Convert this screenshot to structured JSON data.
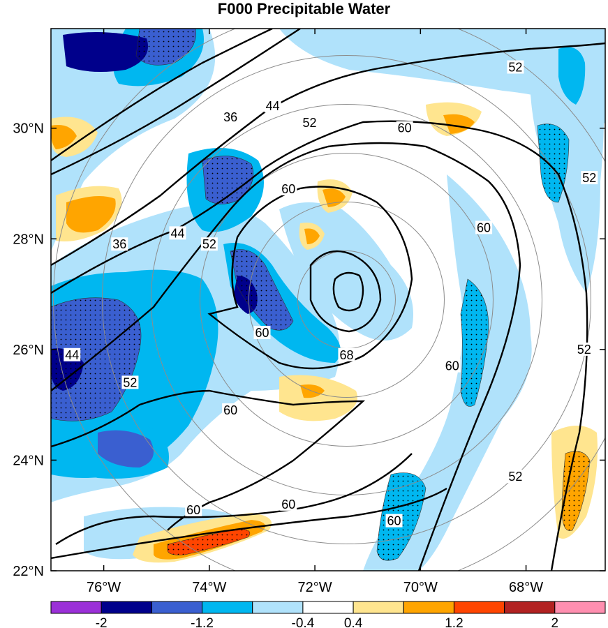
{
  "chart_data": {
    "type": "heatmap",
    "title": "F000 Precipitable Water",
    "map": {
      "projection": "polar stereographic (regional)",
      "lon_range": [
        -77,
        -66.5
      ],
      "lat_range": [
        22,
        31.8
      ],
      "x_ticks": [
        {
          "value": -76,
          "label": "76°W"
        },
        {
          "value": -74,
          "label": "74°W"
        },
        {
          "value": -72,
          "label": "72°W"
        },
        {
          "value": -70,
          "label": "70°W"
        },
        {
          "value": -68,
          "label": "68°W"
        }
      ],
      "y_ticks": [
        {
          "value": 22,
          "label": "22°N"
        },
        {
          "value": 24,
          "label": "24°N"
        },
        {
          "value": 26,
          "label": "26°N"
        },
        {
          "value": 28,
          "label": "28°N"
        },
        {
          "value": 30,
          "label": "30°N"
        }
      ]
    },
    "colorbar": {
      "orientation": "horizontal",
      "placement": "bottom",
      "levels": [
        -2.4,
        -2,
        -1.6,
        -1.2,
        -0.8,
        -0.4,
        0.4,
        0.8,
        1.2,
        1.6,
        2,
        2.4
      ],
      "colors": [
        "#9b30d8",
        "#00008b",
        "#3a5fd0",
        "#00b7f0",
        "#b0e2fb",
        "#ffffff",
        "#ffe58f",
        "#ffa500",
        "#ff4500",
        "#b22222",
        "#ff8fb0"
      ],
      "labels": [
        {
          "value": -2,
          "label": "-2"
        },
        {
          "value": -1.2,
          "label": "-1.2"
        },
        {
          "value": -0.4,
          "label": "-0.4"
        },
        {
          "value": 0.4,
          "label": "0.4"
        },
        {
          "value": 1.2,
          "label": "1.2"
        },
        {
          "value": 2,
          "label": "2"
        }
      ]
    },
    "contours": {
      "field": "Precipitable Water",
      "color": "#000000",
      "levels_labeled": [
        36,
        44,
        52,
        60,
        68
      ],
      "center": {
        "lon": -71.4,
        "lat": 26.9
      },
      "labels": [
        {
          "text": "36",
          "lon": -73.6,
          "lat": 30.2
        },
        {
          "text": "44",
          "lon": -72.8,
          "lat": 30.4
        },
        {
          "text": "52",
          "lon": -72.1,
          "lat": 30.1
        },
        {
          "text": "52",
          "lon": -68.2,
          "lat": 31.1
        },
        {
          "text": "60",
          "lon": -70.3,
          "lat": 30.0
        },
        {
          "text": "60",
          "lon": -72.5,
          "lat": 28.9
        },
        {
          "text": "36",
          "lon": -75.7,
          "lat": 27.9
        },
        {
          "text": "44",
          "lon": -74.6,
          "lat": 28.1
        },
        {
          "text": "52",
          "lon": -74.0,
          "lat": 27.9
        },
        {
          "text": "60",
          "lon": -68.8,
          "lat": 28.2
        },
        {
          "text": "52",
          "lon": -66.8,
          "lat": 29.1
        },
        {
          "text": "60",
          "lon": -73.0,
          "lat": 26.3
        },
        {
          "text": "68",
          "lon": -71.4,
          "lat": 25.9
        },
        {
          "text": "44",
          "lon": -76.6,
          "lat": 25.9
        },
        {
          "text": "52",
          "lon": -75.5,
          "lat": 25.4
        },
        {
          "text": "60",
          "lon": -73.6,
          "lat": 24.9
        },
        {
          "text": "60",
          "lon": -69.4,
          "lat": 25.7
        },
        {
          "text": "52",
          "lon": -66.9,
          "lat": 26.0
        },
        {
          "text": "52",
          "lon": -68.2,
          "lat": 23.7
        },
        {
          "text": "60",
          "lon": -74.3,
          "lat": 23.1
        },
        {
          "text": "60",
          "lon": -72.5,
          "lat": 23.2
        },
        {
          "text": "60",
          "lon": -70.5,
          "lat": 22.9
        }
      ]
    },
    "range_rings": {
      "center": {
        "lon": -71.4,
        "lat": 26.9
      },
      "count": 6,
      "color": "#8c8c8c"
    },
    "stippling": "dotted where magnitude exceeds 0.8",
    "grid": false,
    "legend": "bottom"
  }
}
